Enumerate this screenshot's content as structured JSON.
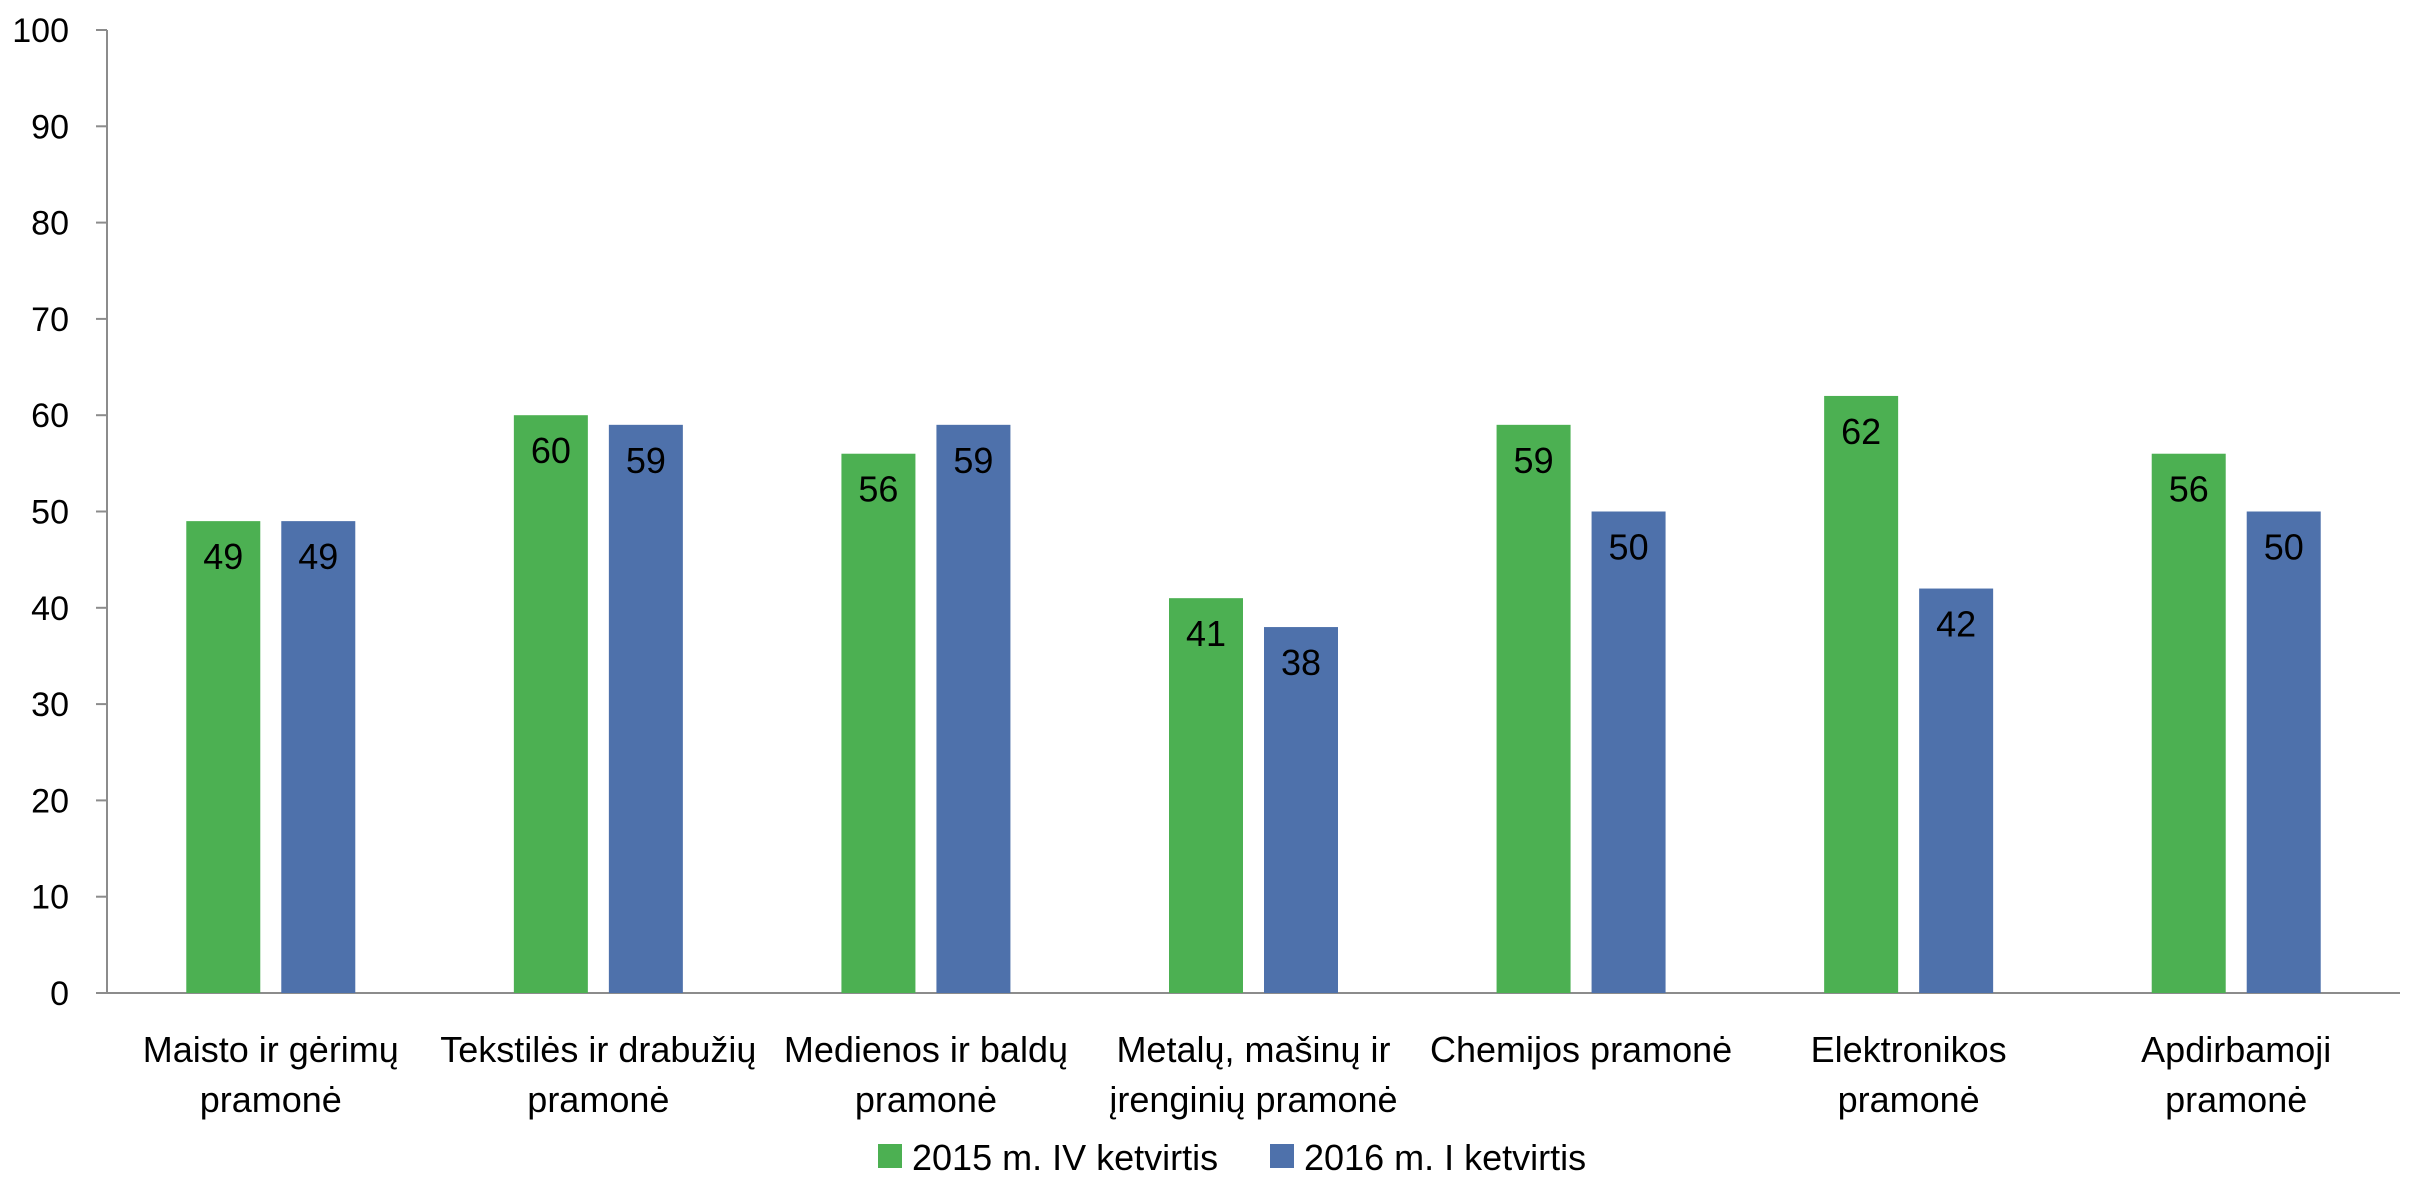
{
  "chart_data": {
    "type": "bar",
    "categories": [
      [
        "Maisto ir gėrimų",
        "pramonė"
      ],
      [
        "Tekstilės ir drabužių",
        "pramonė"
      ],
      [
        "Medienos ir baldų",
        "pramonė"
      ],
      [
        "Metalų, mašinų ir",
        "įrenginių pramonė"
      ],
      [
        "Chemijos pramonė"
      ],
      [
        "Elektronikos",
        "pramonė"
      ],
      [
        "Apdirbamoji",
        "pramonė"
      ]
    ],
    "series": [
      {
        "name": "2015 m. IV ketvirtis",
        "color": "#4CB052",
        "values": [
          49,
          60,
          56,
          41,
          59,
          62,
          56
        ]
      },
      {
        "name": "2016 m. I ketvirtis",
        "color": "#4E71AB",
        "values": [
          49,
          59,
          59,
          38,
          50,
          42,
          50
        ]
      }
    ],
    "ylim": [
      0,
      100
    ],
    "yticks": [
      0,
      10,
      20,
      30,
      40,
      50,
      60,
      70,
      80,
      90,
      100
    ],
    "grid": false,
    "legend_position": "bottom-center",
    "data_labels": true
  }
}
